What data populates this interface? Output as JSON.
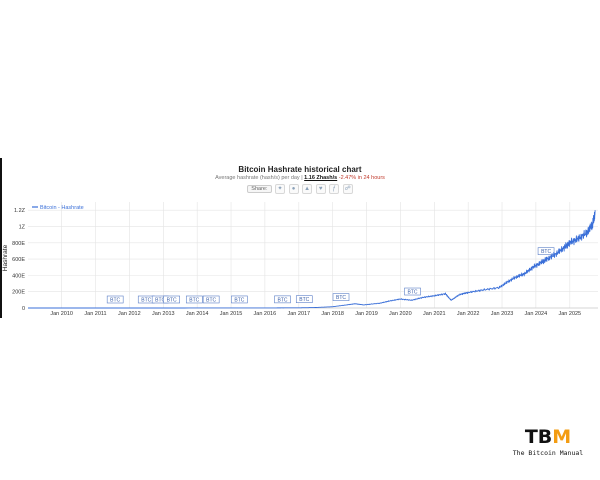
{
  "header": {
    "title": "Bitcoin Hashrate historical chart",
    "subtitle_prefix": "Average hashrate (hash/s) per day | ",
    "subtitle_value": "1.16 Zhash/s",
    "subtitle_change": " -2.47% in 24 hours",
    "share_label": "Share:",
    "change_color": "#c0392b"
  },
  "share_icons": [
    "twitter-icon",
    "reddit-icon",
    "vk-icon",
    "like-icon",
    "facebook-icon",
    "link-icon"
  ],
  "colors": {
    "line": "#3a6fd8",
    "grid": "#e4e4e4",
    "axis_text": "#333333",
    "logo_accent": "#f39c12"
  },
  "chart_data": {
    "type": "line",
    "title": "Bitcoin Hashrate historical chart",
    "ylabel": "Hashrate",
    "xlabel": "",
    "legend": {
      "label": "Bitcoin - Hashrate",
      "placement": "top-left"
    },
    "grid": true,
    "ylim": [
      0,
      1300000000000000000000
    ],
    "xlim": [
      "2009-01-03",
      "2025-11-01"
    ],
    "y_ticks": [
      {
        "value": 0,
        "label": "0"
      },
      {
        "value": 200000000000000000000,
        "label": "200E"
      },
      {
        "value": 400000000000000000000,
        "label": "400E"
      },
      {
        "value": 600000000000000000000,
        "label": "600E"
      },
      {
        "value": 800000000000000000000,
        "label": "800E"
      },
      {
        "value": 1000000000000000000000,
        "label": "1Z"
      },
      {
        "value": 1200000000000000000000,
        "label": "1.2Z"
      }
    ],
    "x_ticks": [
      "Jan 2010",
      "Jan 2011",
      "Jan 2012",
      "Jan 2013",
      "Jan 2014",
      "Jan 2015",
      "Jan 2016",
      "Jan 2017",
      "Jan 2018",
      "Jan 2019",
      "Jan 2020",
      "Jan 2021",
      "Jan 2022",
      "Jan 2023",
      "Jan 2024",
      "Jan 2025"
    ],
    "series": [
      {
        "name": "Bitcoin - Hashrate",
        "unit": "EH/s",
        "points": [
          [
            "2009-01-03",
            0
          ],
          [
            "2013-01-01",
            0
          ],
          [
            "2016-01-01",
            0.8
          ],
          [
            "2017-01-01",
            2.5
          ],
          [
            "2017-07-01",
            6
          ],
          [
            "2018-01-01",
            16
          ],
          [
            "2018-06-01",
            38
          ],
          [
            "2018-09-01",
            52
          ],
          [
            "2018-12-01",
            38
          ],
          [
            "2019-06-01",
            60
          ],
          [
            "2019-09-01",
            85
          ],
          [
            "2020-01-01",
            110
          ],
          [
            "2020-05-01",
            95
          ],
          [
            "2020-09-01",
            130
          ],
          [
            "2021-01-01",
            150
          ],
          [
            "2021-05-01",
            175
          ],
          [
            "2021-07-01",
            95
          ],
          [
            "2021-10-01",
            165
          ],
          [
            "2022-01-01",
            190
          ],
          [
            "2022-06-01",
            220
          ],
          [
            "2022-12-01",
            250
          ],
          [
            "2023-03-01",
            320
          ],
          [
            "2023-06-01",
            380
          ],
          [
            "2023-09-01",
            420
          ],
          [
            "2023-12-01",
            500
          ],
          [
            "2024-03-01",
            560
          ],
          [
            "2024-05-01",
            600
          ],
          [
            "2024-08-01",
            660
          ],
          [
            "2024-11-01",
            740
          ],
          [
            "2025-01-01",
            800
          ],
          [
            "2025-04-01",
            850
          ],
          [
            "2025-07-01",
            920
          ],
          [
            "2025-09-01",
            1020
          ],
          [
            "2025-10-01",
            1160
          ]
        ]
      }
    ],
    "annotations": [
      {
        "date": "2011-08-01",
        "label": "BTC"
      },
      {
        "date": "2012-07-01",
        "label": "BTC"
      },
      {
        "date": "2012-11-28",
        "label": "BTC"
      },
      {
        "date": "2013-04-01",
        "label": "BTC"
      },
      {
        "date": "2013-12-01",
        "label": "BTC"
      },
      {
        "date": "2014-06-01",
        "label": "BTC"
      },
      {
        "date": "2015-04-01",
        "label": "BTC"
      },
      {
        "date": "2016-07-09",
        "label": "BTC"
      },
      {
        "date": "2017-03-01",
        "label": "BTC"
      },
      {
        "date": "2018-04-01",
        "label": "BTC"
      },
      {
        "date": "2020-05-11",
        "label": "BTC"
      },
      {
        "date": "2024-04-20",
        "label": "BTC"
      }
    ]
  },
  "logo": {
    "text_start": "TB",
    "text_end": "M",
    "subtitle": "The Bitcoin Manual"
  }
}
